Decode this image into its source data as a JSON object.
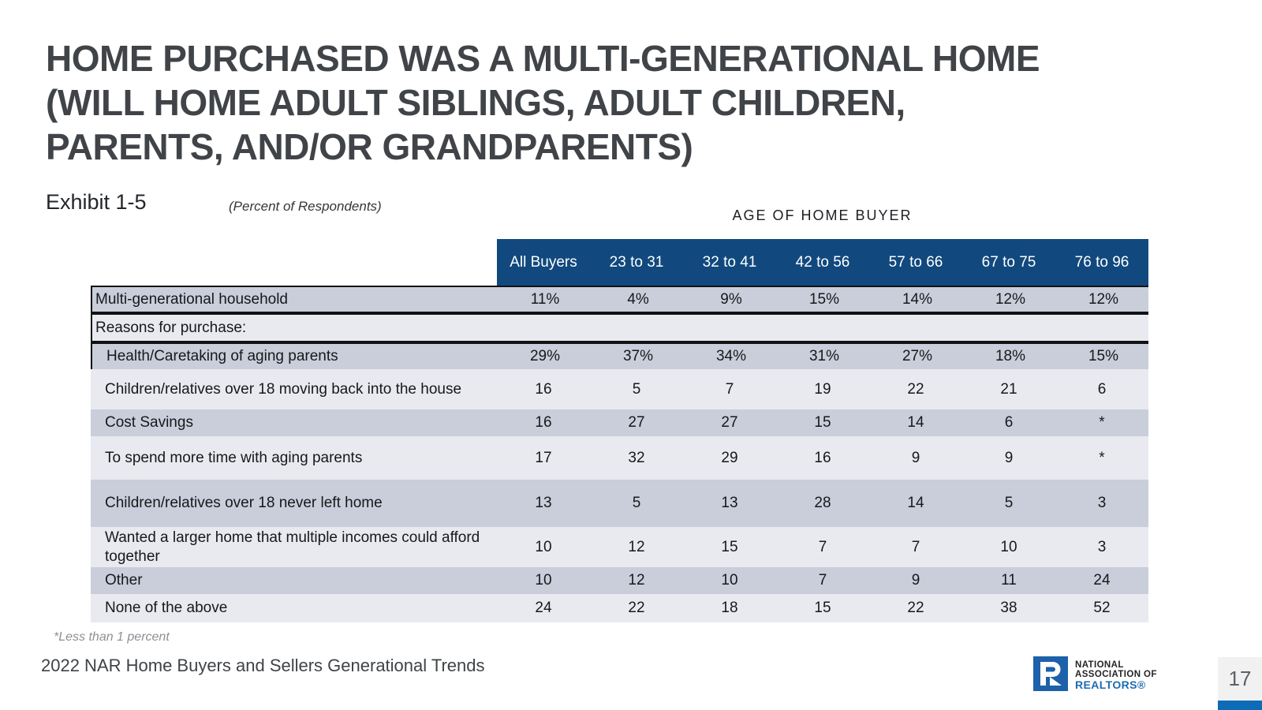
{
  "slide": {
    "title_lines": [
      "HOME PURCHASED WAS A MULTI-GENERATIONAL HOME",
      "(WILL HOME ADULT SIBLINGS, ADULT CHILDREN,",
      "PARENTS, AND/OR GRANDPARENTS)"
    ],
    "exhibit_label": "Exhibit 1-5",
    "percent_note": "(Percent of Respondents)",
    "age_header": "AGE OF HOME BUYER",
    "footnote": "*Less than 1 percent",
    "footer_text": "2022 NAR Home Buyers and Sellers Generational Trends",
    "page_number": "17"
  },
  "logo": {
    "name": "nar-logo",
    "line1": "NATIONAL",
    "line2": "ASSOCIATION OF",
    "line3": "REALTORS®"
  },
  "colors": {
    "header_band": "#11497E",
    "row_dark": "#C9CEDA",
    "row_light": "#E9EAEF",
    "title_text": "#404448",
    "rule_black": "#101113",
    "logo_blue": "#1C61AA",
    "realtors_blue": "#1E6BB0",
    "page_bar_blue": "#0D6CB7",
    "page_block_bg": "#F1F1F2"
  },
  "chart_data": {
    "type": "table",
    "title": "Home Purchased Was a Multi-Generational Home",
    "columns": [
      "All Buyers",
      "23 to 31",
      "32 to 41",
      "42 to 56",
      "57 to 66",
      "67 to 75",
      "76 to 96"
    ],
    "rows": [
      {
        "label": "Multi-generational household",
        "values": [
          "11%",
          "4%",
          "9%",
          "15%",
          "14%",
          "12%",
          "12%"
        ],
        "section": false,
        "indent": false
      },
      {
        "label": "Reasons for purchase:",
        "values": [
          "",
          "",
          "",
          "",
          "",
          "",
          ""
        ],
        "section": true,
        "indent": false
      },
      {
        "label": "Health/Caretaking of aging parents",
        "values": [
          "29%",
          "37%",
          "34%",
          "31%",
          "27%",
          "18%",
          "15%"
        ],
        "section": false,
        "indent": true
      },
      {
        "label": "Children/relatives over 18 moving back into the house",
        "values": [
          "16",
          "5",
          "7",
          "19",
          "22",
          "21",
          "6"
        ],
        "section": false,
        "indent": true
      },
      {
        "label": "Cost Savings",
        "values": [
          "16",
          "27",
          "27",
          "15",
          "14",
          "6",
          "*"
        ],
        "section": false,
        "indent": true
      },
      {
        "label": "To spend more time with aging parents",
        "values": [
          "17",
          "32",
          "29",
          "16",
          "9",
          "9",
          "*"
        ],
        "section": false,
        "indent": true
      },
      {
        "label": "Children/relatives over 18 never left home",
        "values": [
          "13",
          "5",
          "13",
          "28",
          "14",
          "5",
          "3"
        ],
        "section": false,
        "indent": true
      },
      {
        "label": "Wanted a larger home that multiple incomes could afford together",
        "values": [
          "10",
          "12",
          "15",
          "7",
          "7",
          "10",
          "3"
        ],
        "section": false,
        "indent": true
      },
      {
        "label": "Other",
        "values": [
          "10",
          "12",
          "10",
          "7",
          "9",
          "11",
          "24"
        ],
        "section": false,
        "indent": true
      },
      {
        "label": "None of the above",
        "values": [
          "24",
          "22",
          "18",
          "15",
          "22",
          "38",
          "52"
        ],
        "section": false,
        "indent": true
      }
    ],
    "footnote": "*Less than 1 percent"
  }
}
